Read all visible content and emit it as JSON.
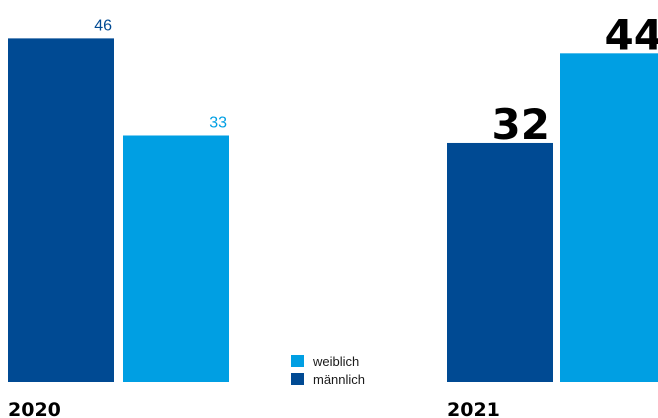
{
  "chart_data": {
    "type": "bar",
    "categories": [
      "2020",
      "2021"
    ],
    "series": [
      {
        "name": "männlich",
        "values": [
          46,
          32
        ]
      },
      {
        "name": "weiblich",
        "values": [
          33,
          44
        ]
      }
    ],
    "title": "",
    "xlabel": "",
    "ylabel": "",
    "ylim": [
      0,
      46
    ],
    "grid": false,
    "legend": "bottom-center"
  },
  "colors": {
    "maennlich": "#004a93",
    "weiblich": "#009fe3",
    "label_2020_maennlich": "#004a93",
    "label_2020_weiblich": "#009fe3",
    "label_2021": "#000000"
  },
  "legend": {
    "items": [
      {
        "label": "weiblich",
        "color": "#009fe3"
      },
      {
        "label": "männlich",
        "color": "#004a93"
      }
    ]
  }
}
